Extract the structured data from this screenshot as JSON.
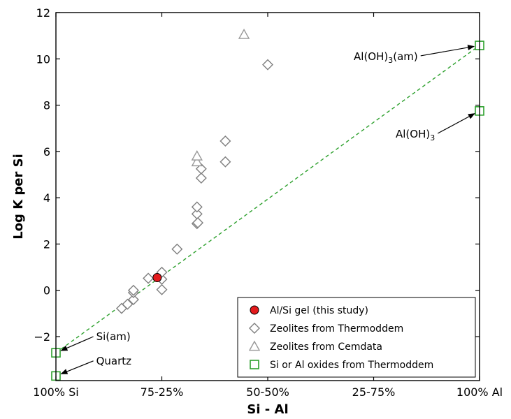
{
  "chart_data": {
    "type": "scatter",
    "title": "",
    "xlabel": "Si - Al",
    "ylabel": "Log K per Si",
    "xlim": [
      0,
      100
    ],
    "ylim": [
      -3.9,
      12
    ],
    "x_ticks": [
      {
        "value": 0,
        "label": "100% Si"
      },
      {
        "value": 25,
        "label": "75-25%"
      },
      {
        "value": 50,
        "label": "50-50%"
      },
      {
        "value": 75,
        "label": "25-75%"
      },
      {
        "value": 100,
        "label": "100% Al"
      }
    ],
    "y_ticks": [
      {
        "value": -2,
        "label": "−2"
      },
      {
        "value": 0,
        "label": "0"
      },
      {
        "value": 2,
        "label": "2"
      },
      {
        "value": 4,
        "label": "4"
      },
      {
        "value": 6,
        "label": "6"
      },
      {
        "value": 8,
        "label": "8"
      },
      {
        "value": 10,
        "label": "10"
      },
      {
        "value": 12,
        "label": "12"
      }
    ],
    "grid": false,
    "legend_position": "bottom-right",
    "series": [
      {
        "name": "Al/Si gel (this study)",
        "marker": "circle",
        "color": "#e31a1c",
        "points": [
          {
            "x": 23.9,
            "y": 0.55
          }
        ]
      },
      {
        "name": "Zeolites from Thermoddem",
        "marker": "diamond",
        "color": "#7f7f7f",
        "points": [
          {
            "x": 15.5,
            "y": -0.78
          },
          {
            "x": 16.9,
            "y": -0.6
          },
          {
            "x": 18.3,
            "y": -0.4
          },
          {
            "x": 18.3,
            "y": -0.1
          },
          {
            "x": 18.3,
            "y": 0.0
          },
          {
            "x": 21.8,
            "y": 0.52
          },
          {
            "x": 25.0,
            "y": 0.48
          },
          {
            "x": 25.0,
            "y": 0.78
          },
          {
            "x": 25.0,
            "y": 0.03
          },
          {
            "x": 28.6,
            "y": 1.78
          },
          {
            "x": 33.3,
            "y": 2.88
          },
          {
            "x": 33.3,
            "y": 3.3
          },
          {
            "x": 33.3,
            "y": 3.6
          },
          {
            "x": 33.5,
            "y": 2.92
          },
          {
            "x": 34.3,
            "y": 4.85
          },
          {
            "x": 34.3,
            "y": 5.25
          },
          {
            "x": 40.0,
            "y": 5.55
          },
          {
            "x": 40.0,
            "y": 6.45
          },
          {
            "x": 50.0,
            "y": 9.75
          }
        ]
      },
      {
        "name": "Zeolites from Cemdata",
        "marker": "triangle",
        "color": "#999999",
        "points": [
          {
            "x": 33.3,
            "y": 5.55
          },
          {
            "x": 33.3,
            "y": 5.8
          },
          {
            "x": 44.4,
            "y": 11.05
          }
        ]
      },
      {
        "name": "Si or Al oxides from Thermoddem",
        "marker": "square",
        "color": "#2ca02c",
        "points": [
          {
            "x": 0,
            "y": -2.7
          },
          {
            "x": 0,
            "y": -3.7
          },
          {
            "x": 100,
            "y": 10.58
          },
          {
            "x": 100,
            "y": 7.75
          }
        ]
      }
    ],
    "trend_line": {
      "style": "dashed",
      "color": "#2ca02c",
      "from": {
        "x": 0,
        "y": -2.7
      },
      "to": {
        "x": 100,
        "y": 10.58
      }
    },
    "annotations": [
      {
        "text": "Si(am)",
        "sub": "",
        "suffix": "",
        "point": {
          "x": 0,
          "y": -2.7
        },
        "text_at": {
          "x": 9.5,
          "y": -2.15
        }
      },
      {
        "text": "Quartz",
        "sub": "",
        "suffix": "",
        "point": {
          "x": 0,
          "y": -3.7
        },
        "text_at": {
          "x": 9.5,
          "y": -3.2
        }
      },
      {
        "text": "Al(OH)",
        "sub": "3",
        "suffix": "(am)",
        "point": {
          "x": 100,
          "y": 10.58
        },
        "text_at": {
          "x": 70.3,
          "y": 9.95
        }
      },
      {
        "text": "Al(OH)",
        "sub": "3",
        "suffix": "",
        "point": {
          "x": 100,
          "y": 7.75
        },
        "text_at": {
          "x": 80.2,
          "y": 6.6
        }
      }
    ]
  }
}
